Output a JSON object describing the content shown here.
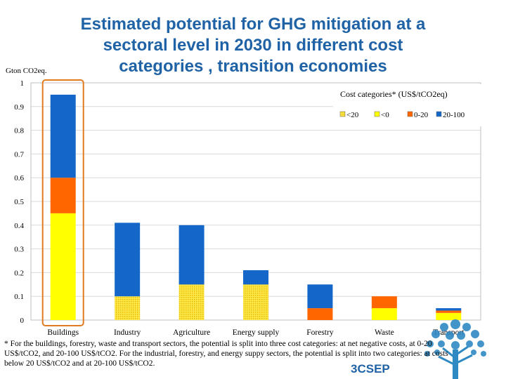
{
  "title_lines": [
    "Estimated potential for GHG mitigation at a",
    "sectoral level in 2030 in different cost",
    "categories , transition economies"
  ],
  "chart_data": {
    "type": "bar",
    "stacked": true,
    "categories": [
      "Buildings",
      "Industry",
      "Agriculture",
      "Energy supply",
      "Forestry",
      "Waste",
      "Transport"
    ],
    "ylabel": "Gton CO2eq.",
    "ylim": [
      0,
      1
    ],
    "yticks": [
      "0",
      "0.1",
      "0.2",
      "0.3",
      "0.4",
      "0.5",
      "0.6",
      "0.7",
      "0.8",
      "0.9",
      "1"
    ],
    "grid": true,
    "legend_title": "Cost categories* (US$/tCO2eq)",
    "legend_position": "top-right",
    "series": [
      {
        "name": "<20",
        "color": "#ffe94a",
        "pattern": "dotted",
        "values": [
          null,
          0.1,
          0.15,
          0.15,
          null,
          null,
          null
        ]
      },
      {
        "name": "<0",
        "color": "#ffff00",
        "values": [
          0.45,
          null,
          null,
          null,
          null,
          0.05,
          0.03
        ]
      },
      {
        "name": "0-20",
        "color": "#ff6600",
        "values": [
          0.15,
          null,
          null,
          null,
          0.05,
          0.05,
          0.01
        ]
      },
      {
        "name": "20-100",
        "color": "#1466c8",
        "values": [
          0.35,
          0.31,
          0.25,
          0.06,
          0.1,
          null,
          0.01
        ]
      }
    ],
    "highlight_category": "Buildings",
    "highlight_color": "#e07b20"
  },
  "footnote_lines": [
    "* For the buildings, forestry, waste and transport sectors, the potential is split into three cost categories: at net negative costs, at 0-20",
    "US$/tCO2, and 20-100 US$/tCO2.  For the industrial, forestry, and energy suppy sectors, the potential is split into two  categories: at costs",
    "below 20 US$/tCO2 and at 20-100 US$/tCO2."
  ],
  "brand": "3CSEP",
  "logo_icon": "tree-icon"
}
